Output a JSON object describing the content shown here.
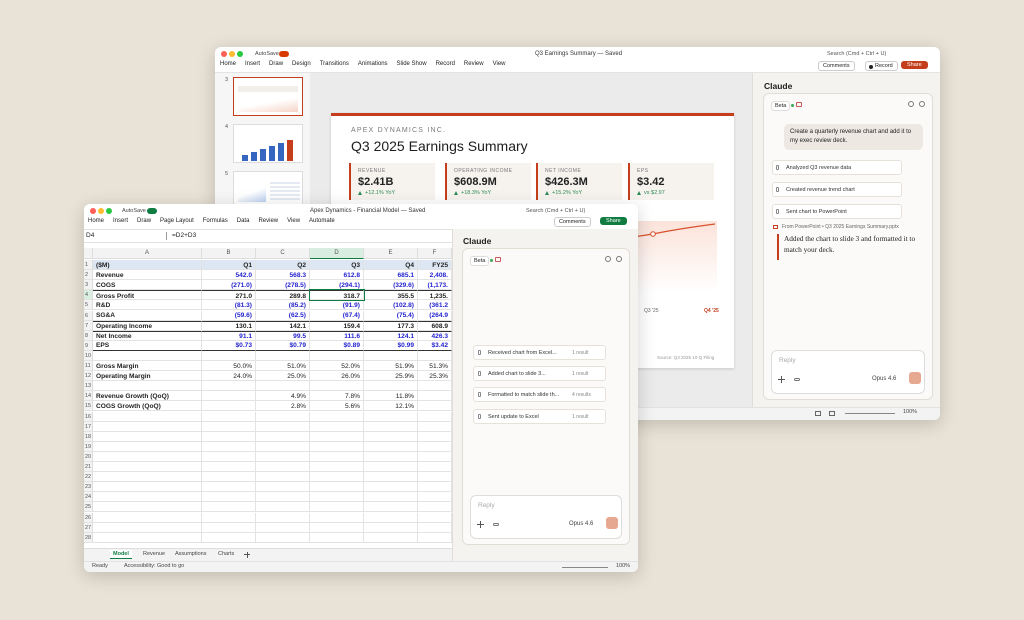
{
  "powerpoint": {
    "autosave": "AutoSave",
    "title": "Q3 Earnings Summary — Saved",
    "search": "Search (Cmd + Ctrl + U)",
    "menu": [
      "Home",
      "Insert",
      "Draw",
      "Design",
      "Transitions",
      "Animations",
      "Slide Show",
      "Record",
      "Review",
      "View"
    ],
    "buttons": {
      "comments": "Comments",
      "record": "Record",
      "share": "Share"
    },
    "thumbnails": [
      "3",
      "4",
      "5"
    ],
    "slide": {
      "company": "APEX DYNAMICS INC.",
      "title": "Q3 2025 Earnings Summary",
      "kpis": [
        {
          "label": "REVENUE",
          "value": "$2.41B",
          "change": "+12.1% YoY"
        },
        {
          "label": "OPERATING INCOME",
          "value": "$608.9M",
          "change": "+18.3% YoY"
        },
        {
          "label": "NET INCOME",
          "value": "$426.3M",
          "change": "+15.2% YoY"
        },
        {
          "label": "EPS",
          "value": "$3.42",
          "change": "vs $2.97"
        }
      ],
      "chart_labels": [
        "Q3 '25",
        "Q4 '25"
      ],
      "source": "Source: Q3 2025 10-Q Filing"
    },
    "claude": {
      "title": "Claude",
      "badge": "Beta",
      "prompt": "Create a quarterly revenue chart and add it to my exec review deck.",
      "steps": [
        "Analyzed Q3 revenue data",
        "Created revenue trend chart",
        "Sent chart to PowerPoint"
      ],
      "source": "From PowerPoint • Q3 2025 Earnings Summary.pptx",
      "response": "Added the chart to slide 3 and formatted it to match your deck.",
      "reply": "Reply",
      "model": "Opus 4.6"
    },
    "zoom": "100%"
  },
  "excel": {
    "autosave": "AutoSave",
    "title": "Apex Dynamics - Financial Model — Saved",
    "search": "Search (Cmd + Ctrl + U)",
    "menu": [
      "Home",
      "Insert",
      "Draw",
      "Page Layout",
      "Formulas",
      "Data",
      "Review",
      "View",
      "Automate"
    ],
    "buttons": {
      "comments": "Comments",
      "share": "Share"
    },
    "name_box": "D4",
    "formula": "=D2+D3",
    "columns": [
      "A",
      "B",
      "C",
      "D",
      "E",
      "F"
    ],
    "rows": [
      {
        "number": "1",
        "cells": [
          "($M)",
          "Q1",
          "Q2",
          "Q3",
          "Q4",
          "FY25"
        ]
      },
      {
        "number": "2",
        "cells": [
          "Revenue",
          "542.0",
          "568.3",
          "612.8",
          "685.1",
          "2,408."
        ]
      },
      {
        "number": "3",
        "cells": [
          "COGS",
          "(271.0)",
          "(278.5)",
          "(294.1)",
          "(329.6)",
          "(1,173."
        ]
      },
      {
        "number": "4",
        "cells": [
          "Gross Profit",
          "271.0",
          "289.8",
          "318.7",
          "355.5",
          "1,235."
        ]
      },
      {
        "number": "5",
        "cells": [
          "R&D",
          "(81.3)",
          "(85.2)",
          "(91.9)",
          "(102.8)",
          "(361.2"
        ]
      },
      {
        "number": "6",
        "cells": [
          "SG&A",
          "(59.6)",
          "(62.5)",
          "(67.4)",
          "(75.4)",
          "(264.9"
        ]
      },
      {
        "number": "7",
        "cells": [
          "Operating Income",
          "130.1",
          "142.1",
          "159.4",
          "177.3",
          "608.9"
        ]
      },
      {
        "number": "8",
        "cells": [
          "Net Income",
          "91.1",
          "99.5",
          "111.6",
          "124.1",
          "426.3"
        ]
      },
      {
        "number": "9",
        "cells": [
          "EPS",
          "$0.73",
          "$0.79",
          "$0.89",
          "$0.99",
          "$3.42"
        ]
      },
      {
        "number": "10"
      },
      {
        "number": "11",
        "cells": [
          "Gross Margin",
          "50.0%",
          "51.0%",
          "52.0%",
          "51.9%",
          "51.3%"
        ]
      },
      {
        "number": "12",
        "cells": [
          "Operating Margin",
          "24.0%",
          "25.0%",
          "26.0%",
          "25.9%",
          "25.3%"
        ]
      },
      {
        "number": "13"
      },
      {
        "number": "14",
        "cells": [
          "Revenue Growth (QoQ)",
          null,
          "4.9%",
          "7.8%",
          "11.8%",
          null
        ]
      },
      {
        "number": "15",
        "cells": [
          "COGS Growth (QoQ)",
          null,
          "2.8%",
          "5.6%",
          "12.1%",
          null
        ]
      },
      {
        "number": "16"
      },
      {
        "number": "17"
      },
      {
        "number": "18"
      },
      {
        "number": "19"
      },
      {
        "number": "20"
      },
      {
        "number": "21"
      },
      {
        "number": "22"
      },
      {
        "number": "23"
      },
      {
        "number": "24"
      },
      {
        "number": "25"
      },
      {
        "number": "26"
      },
      {
        "number": "27"
      },
      {
        "number": "28"
      }
    ],
    "sheets": [
      "Model",
      "Revenue",
      "Assumptions",
      "Charts"
    ],
    "claude": {
      "title": "Claude",
      "badge": "Beta",
      "steps": [
        {
          "text": "Received chart from Excel...",
          "result": "1 result"
        },
        {
          "text": "Added chart to slide 3...",
          "result": "1 result"
        },
        {
          "text": "Formatted to match slide th...",
          "result": "4 results"
        },
        {
          "text": "Sent update to Excel",
          "result": "1 result"
        }
      ],
      "reply": "Reply",
      "model": "Opus 4.6"
    },
    "status": "Ready",
    "accessibility": "Accessibility: Good to go",
    "zoom": "100%"
  }
}
